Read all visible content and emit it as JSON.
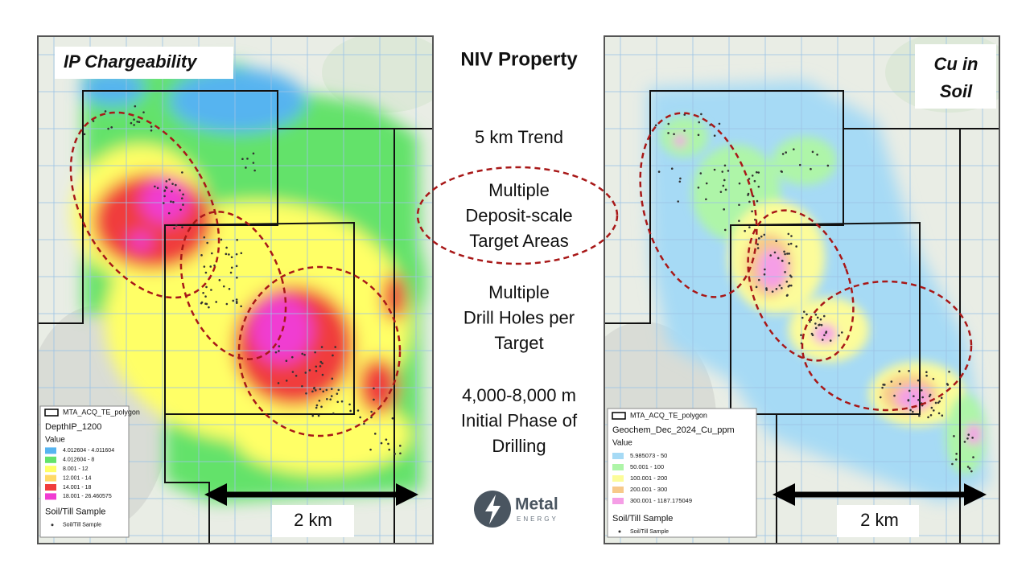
{
  "title": "NIV Property",
  "center_points": [
    {
      "lines": [
        "5 km Trend"
      ]
    },
    {
      "lines": [
        "Multiple",
        "Deposit-scale",
        "Target Areas"
      ]
    },
    {
      "lines": [
        "Multiple",
        "Drill Holes per",
        "Target"
      ]
    },
    {
      "lines": [
        "4,000-8,000 m",
        "Initial Phase of",
        "Drilling"
      ]
    }
  ],
  "logo": {
    "name": "Metal",
    "subtitle": "ENERGY"
  },
  "left_map": {
    "label": [
      "IP Chargeability"
    ],
    "scale": "2 km",
    "legend": {
      "polygon": "MTA_ACQ_TE_polygon",
      "layer": "DepthIP_1200",
      "value_heading": "Value",
      "classes": [
        {
          "label": "4.012604 - 4.011604",
          "color": "#56b4f0"
        },
        {
          "label": "4.012604 - 8",
          "color": "#63e26b"
        },
        {
          "label": "8.001 - 12",
          "color": "#ffff66"
        },
        {
          "label": "12.001 - 14",
          "color": "#ffd966"
        },
        {
          "label": "14.001 - 18",
          "color": "#f03c3c"
        },
        {
          "label": "18.001 - 26.460575",
          "color": "#f03cd2"
        }
      ],
      "sample_heading": "Soil/Till Sample",
      "sample": "Soil/Till Sample"
    }
  },
  "right_map": {
    "label": [
      "Cu in",
      "Soil"
    ],
    "scale": "2 km",
    "legend": {
      "polygon": "MTA_ACQ_TE_polygon",
      "layer": "Geochem_Dec_2024_Cu_ppm",
      "value_heading": "Value",
      "classes": [
        {
          "label": "5.985073 - 50",
          "color": "#a6daf5"
        },
        {
          "label": "50.001 - 100",
          "color": "#aef5a8"
        },
        {
          "label": "100.001 - 200",
          "color": "#fcfc9a"
        },
        {
          "label": "200.001 - 300",
          "color": "#f7c98a"
        },
        {
          "label": "300.001 - 1187.175049",
          "color": "#f59ee6"
        }
      ],
      "sample_heading": "Soil/Till Sample",
      "sample": "Soil/Till Sample"
    }
  }
}
